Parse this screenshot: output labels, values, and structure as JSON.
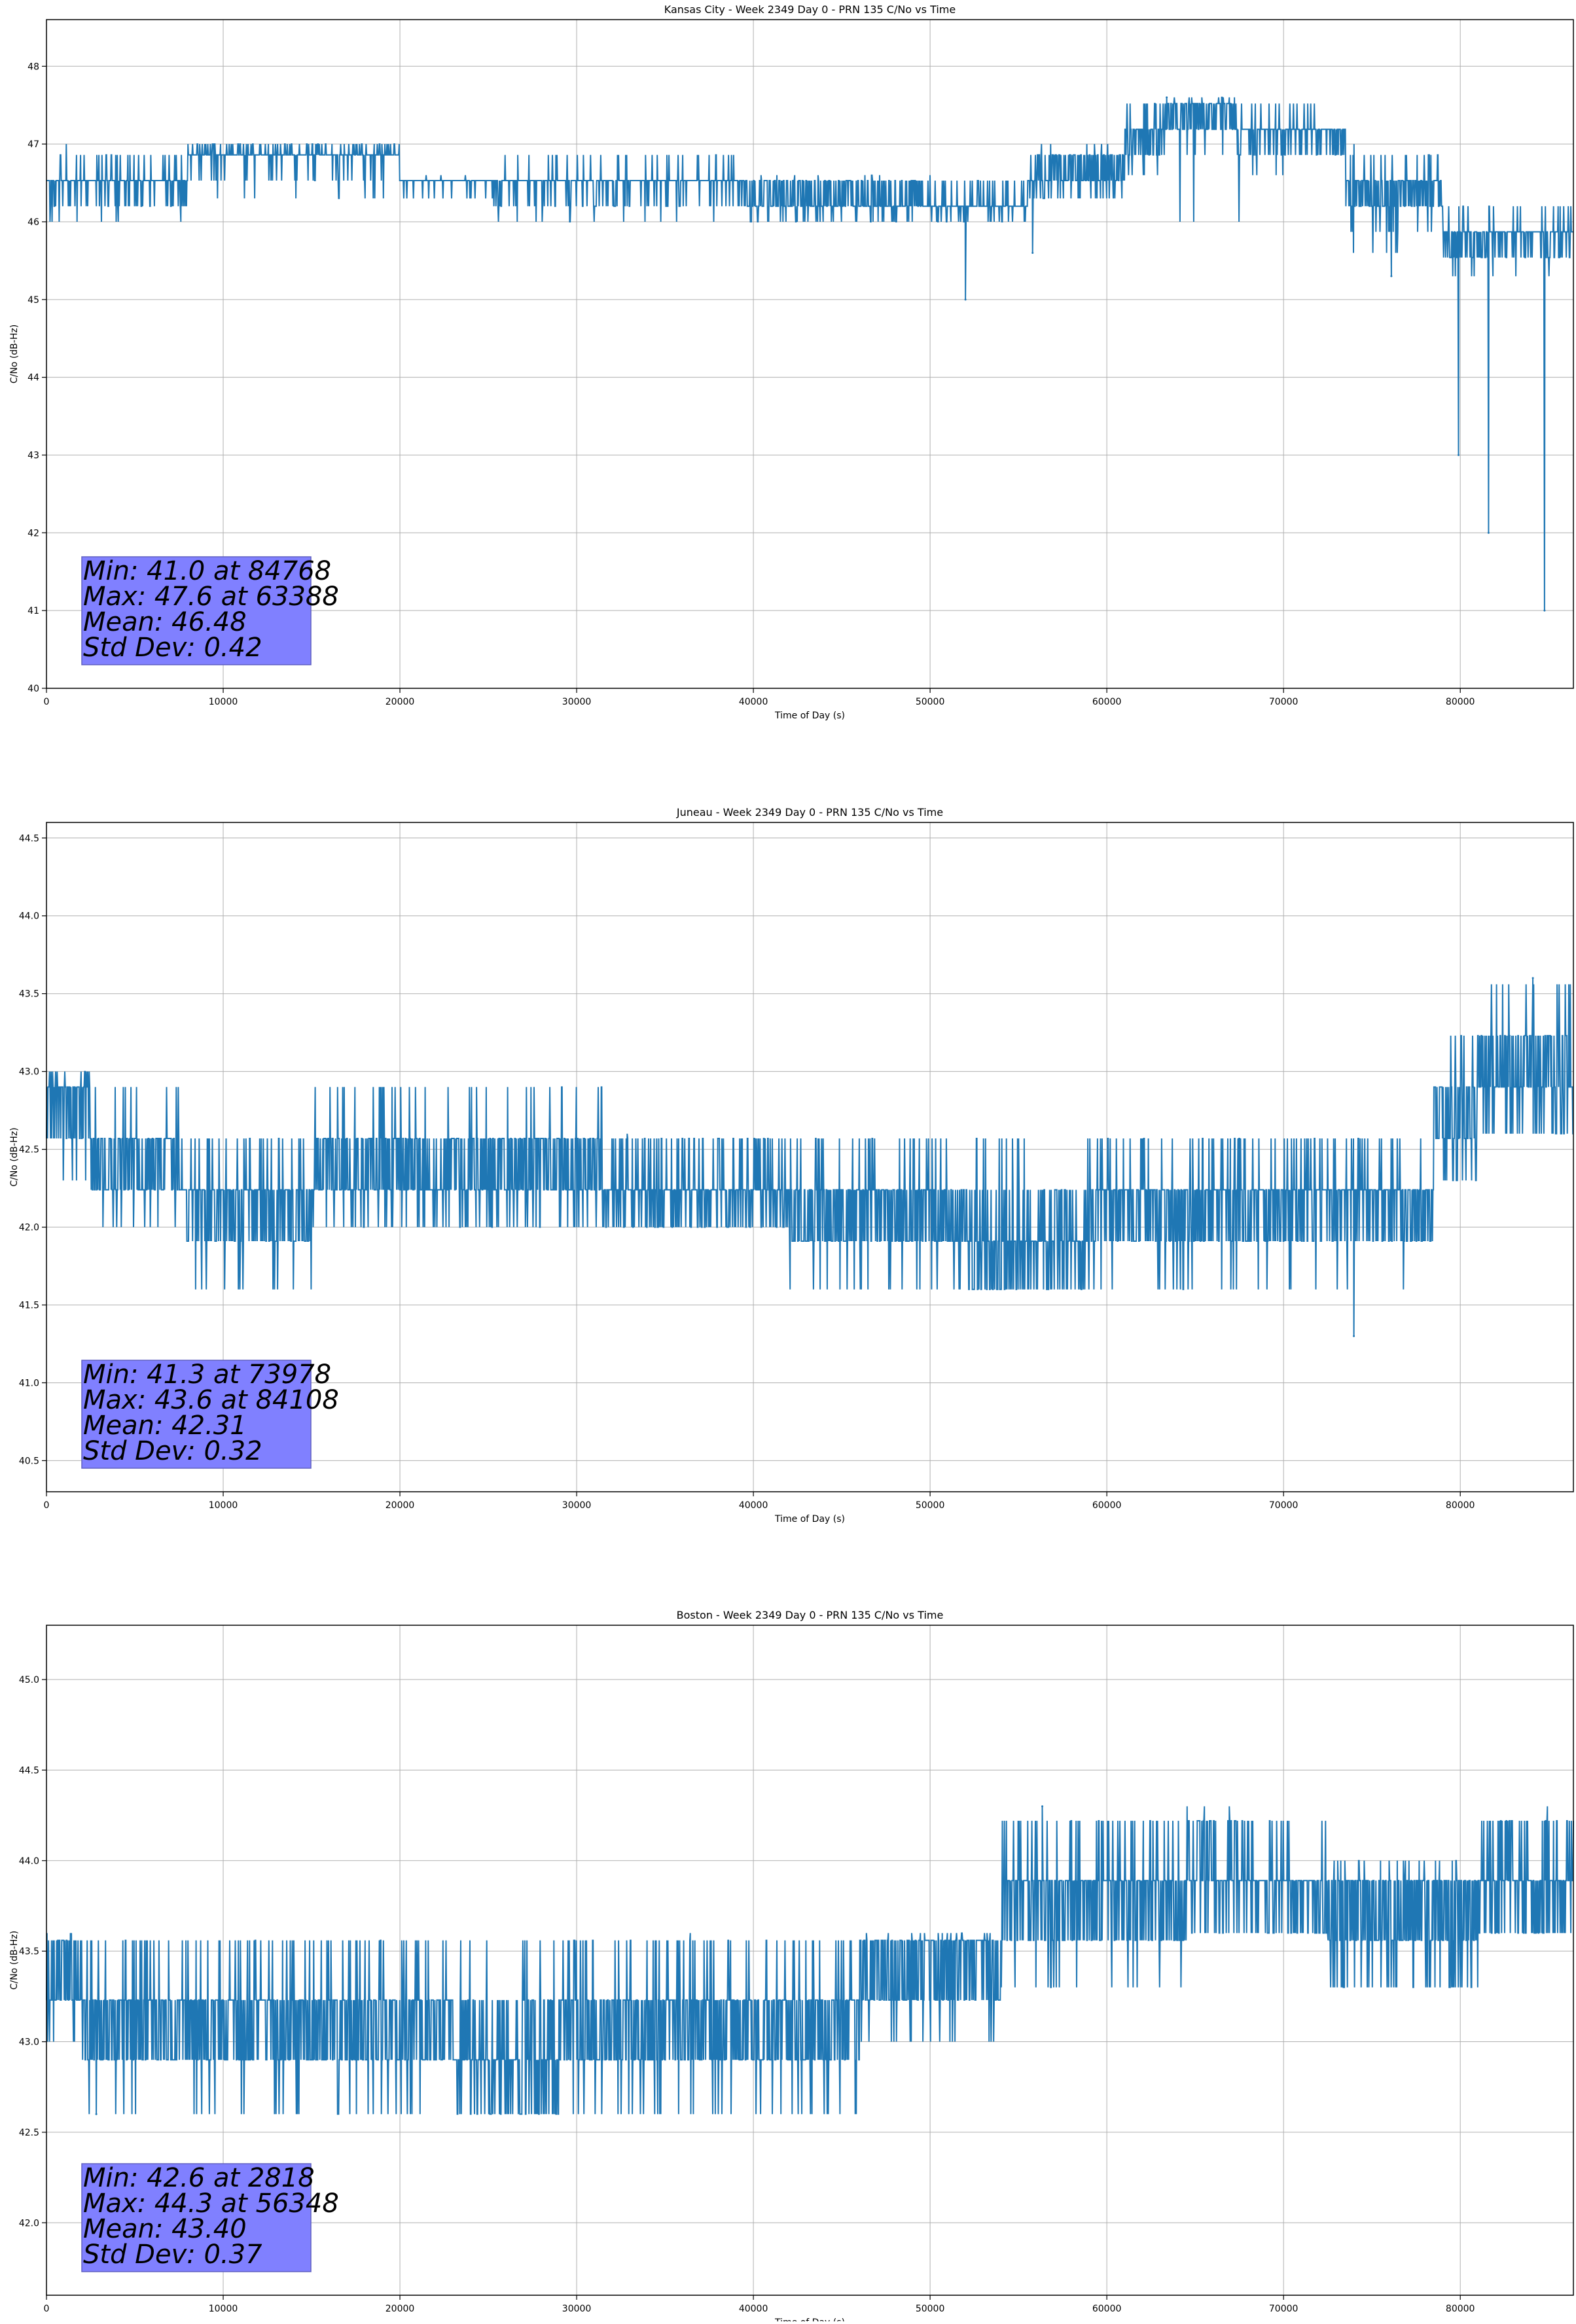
{
  "chart_data": [
    {
      "type": "line",
      "title": "Kansas City - Week 2349 Day 0 - PRN 135 C/No vs Time",
      "xlabel": "Time of Day (s)",
      "ylabel": "C/No (dB-Hz)",
      "xlim": [
        0,
        86400
      ],
      "ylim": [
        40,
        48.6
      ],
      "xticks": [
        0,
        10000,
        20000,
        30000,
        40000,
        50000,
        60000,
        70000,
        80000
      ],
      "yticks": [
        40,
        41,
        42,
        43,
        44,
        45,
        46,
        47,
        48
      ],
      "ytick_decimals": 0,
      "grid": true,
      "series_color": "#1f77b4",
      "seed": 11,
      "segments": [
        [
          0,
          8000,
          46.5,
          0.15,
          46.0,
          47.0
        ],
        [
          8000,
          20000,
          46.9,
          0.15,
          46.3,
          47.0
        ],
        [
          20000,
          25300,
          46.5,
          0.1,
          46.3,
          46.6
        ],
        [
          25300,
          39500,
          46.5,
          0.12,
          46.0,
          47.0
        ],
        [
          39500,
          50000,
          46.3,
          0.2,
          46.0,
          46.6
        ],
        [
          50000,
          55500,
          46.2,
          0.15,
          46.0,
          46.6
        ],
        [
          55500,
          61000,
          46.6,
          0.25,
          46.3,
          47.0
        ],
        [
          61000,
          63500,
          47.1,
          0.2,
          46.6,
          47.6
        ],
        [
          63500,
          67500,
          47.4,
          0.2,
          46.0,
          47.6
        ],
        [
          67500,
          73500,
          47.1,
          0.15,
          46.6,
          47.6
        ],
        [
          73500,
          79000,
          46.4,
          0.2,
          45.6,
          47.0
        ],
        [
          79000,
          86400,
          45.8,
          0.15,
          45.3,
          46.3
        ]
      ],
      "spikes": [
        [
          52000,
          45.0
        ],
        [
          55800,
          45.6
        ],
        [
          76100,
          45.3
        ],
        [
          79900,
          43.0
        ],
        [
          81600,
          42.0
        ],
        [
          84768,
          41.0
        ],
        [
          63388,
          47.6
        ]
      ],
      "stats": {
        "min": "Min: 41.0 at 84768",
        "max": "Max: 47.6 at 63388",
        "mean": "Mean: 46.48",
        "std": "Std Dev: 0.42"
      },
      "stats_box_color": "#8080ff"
    },
    {
      "type": "line",
      "title": "Juneau - Week 2349 Day 0 - PRN 135 C/No vs Time",
      "xlabel": "Time of Day (s)",
      "ylabel": "C/No (dB-Hz)",
      "xlim": [
        0,
        86400
      ],
      "ylim": [
        40.3,
        44.6
      ],
      "xticks": [
        0,
        10000,
        20000,
        30000,
        40000,
        50000,
        60000,
        70000,
        80000
      ],
      "yticks": [
        40.5,
        41.0,
        41.5,
        42.0,
        42.5,
        43.0,
        43.5,
        44.0,
        44.5
      ],
      "ytick_decimals": 1,
      "grid": true,
      "series_color": "#1f77b4",
      "seed": 23,
      "segments": [
        [
          0,
          2500,
          42.8,
          0.2,
          42.3,
          43.0
        ],
        [
          2500,
          7500,
          42.4,
          0.2,
          42.0,
          43.0
        ],
        [
          7500,
          15000,
          42.15,
          0.2,
          41.6,
          42.6
        ],
        [
          15000,
          31500,
          42.35,
          0.22,
          42.0,
          43.0
        ],
        [
          31500,
          42000,
          42.2,
          0.2,
          42.0,
          42.6
        ],
        [
          42000,
          52000,
          42.1,
          0.2,
          41.6,
          42.6
        ],
        [
          52000,
          59000,
          41.9,
          0.25,
          41.6,
          42.6
        ],
        [
          59000,
          78500,
          42.15,
          0.2,
          41.6,
          42.6
        ],
        [
          78500,
          81000,
          42.7,
          0.25,
          42.3,
          43.3
        ],
        [
          81000,
          86400,
          43.0,
          0.25,
          42.6,
          43.6
        ]
      ],
      "spikes": [
        [
          73978,
          41.3
        ],
        [
          84108,
          43.6
        ]
      ],
      "stats": {
        "min": "Min: 41.3 at 73978",
        "max": "Max: 43.6 at 84108",
        "mean": "Mean: 42.31",
        "std": "Std Dev: 0.32"
      },
      "stats_box_color": "#8080ff"
    },
    {
      "type": "line",
      "title": "Boston - Week 2349 Day 0 - PRN 135 C/No vs Time",
      "xlabel": "Time of Day (s)",
      "ylabel": "C/No (dB-Hz)",
      "xlim": [
        0,
        86400
      ],
      "ylim": [
        41.6,
        45.3
      ],
      "xticks": [
        0,
        10000,
        20000,
        30000,
        40000,
        50000,
        60000,
        70000,
        80000
      ],
      "yticks": [
        42.0,
        42.5,
        43.0,
        43.5,
        44.0,
        44.5,
        45.0
      ],
      "ytick_decimals": 1,
      "grid": true,
      "series_color": "#1f77b4",
      "seed": 37,
      "segments": [
        [
          0,
          2000,
          43.3,
          0.2,
          43.0,
          43.6
        ],
        [
          2000,
          23000,
          43.1,
          0.2,
          42.6,
          43.6
        ],
        [
          23000,
          29000,
          42.9,
          0.25,
          42.6,
          43.6
        ],
        [
          29000,
          46000,
          43.1,
          0.2,
          42.6,
          43.6
        ],
        [
          46000,
          54000,
          43.4,
          0.2,
          43.0,
          43.6
        ],
        [
          54000,
          64500,
          43.8,
          0.2,
          43.3,
          44.3
        ],
        [
          64500,
          68500,
          43.95,
          0.2,
          43.6,
          44.3
        ],
        [
          68500,
          72500,
          43.8,
          0.15,
          43.6,
          44.3
        ],
        [
          72500,
          81000,
          43.7,
          0.25,
          43.3,
          44.0
        ],
        [
          81000,
          86400,
          43.9,
          0.2,
          43.6,
          44.3
        ]
      ],
      "spikes": [
        [
          2818,
          42.6
        ],
        [
          56348,
          44.3
        ]
      ],
      "stats": {
        "min": "Min: 42.6 at 2818",
        "max": "Max: 44.3 at 56348",
        "mean": "Mean: 43.40",
        "std": "Std Dev: 0.37"
      },
      "stats_box_color": "#8080ff"
    }
  ]
}
